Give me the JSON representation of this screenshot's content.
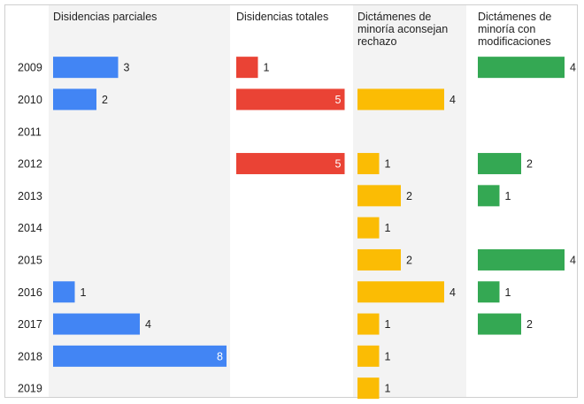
{
  "chart_data": {
    "type": "bar",
    "categories": [
      "2009",
      "2010",
      "2011",
      "2012",
      "2013",
      "2014",
      "2015",
      "2016",
      "2017",
      "2018",
      "2019"
    ],
    "series": [
      {
        "name": "Disidencias parciales",
        "color": "#4285f4",
        "values": [
          3,
          2,
          null,
          null,
          null,
          null,
          null,
          1,
          4,
          8,
          null
        ]
      },
      {
        "name": "Disidencias totales",
        "color": "#ea4335",
        "values": [
          1,
          5,
          null,
          5,
          null,
          null,
          null,
          null,
          null,
          null,
          null
        ]
      },
      {
        "name": "Dictámenes de minoría aconsejan rechazo",
        "color": "#fbbc04",
        "values": [
          null,
          4,
          null,
          1,
          2,
          1,
          2,
          4,
          1,
          1,
          1
        ]
      },
      {
        "name": "Dictámenes de minoría con modificaciones",
        "color": "#34a853",
        "values": [
          4,
          null,
          null,
          2,
          1,
          null,
          4,
          1,
          2,
          null,
          null
        ]
      }
    ],
    "header_lines": [
      [
        "Disidencias parciales"
      ],
      [
        "Disidencias totales"
      ],
      [
        "Dictámenes de",
        "minoría aconsejan",
        "rechazo"
      ],
      [
        "Dictámenes de",
        "minoría con",
        "modificaciones"
      ]
    ],
    "inside_label_series": [
      0,
      1
    ],
    "shaded_columns": [
      0,
      2
    ]
  }
}
